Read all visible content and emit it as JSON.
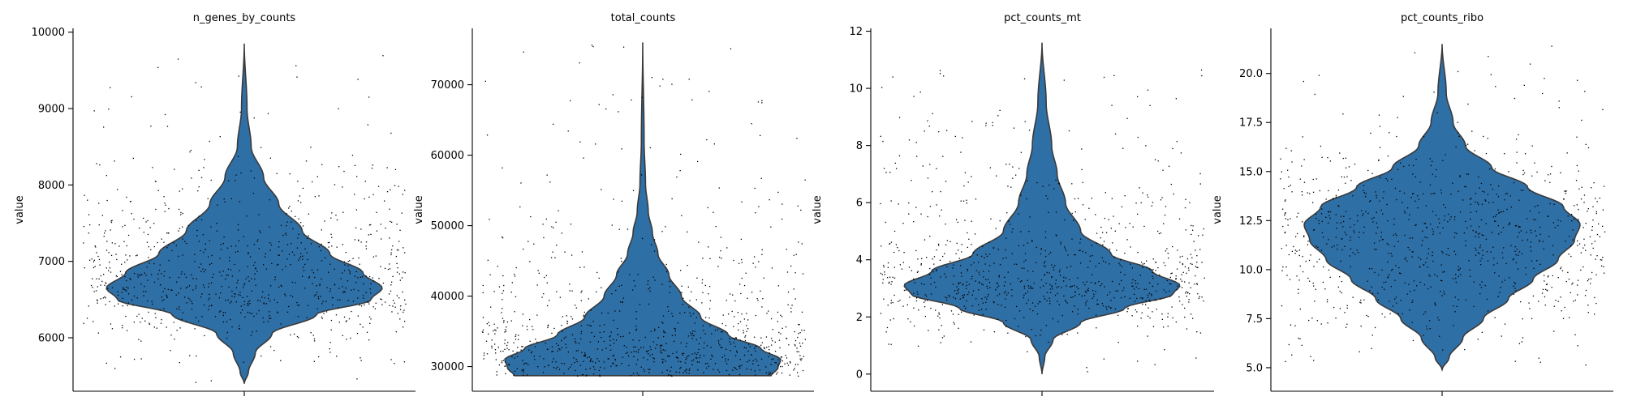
{
  "chart_data": [
    {
      "type": "violin",
      "title": "n_genes_by_counts",
      "xlabel": "",
      "ylabel": "value",
      "ylim": [
        5300,
        10050
      ],
      "yticks": [
        6000,
        7000,
        8000,
        9000,
        10000
      ],
      "ytick_labels": [
        "6000",
        "7000",
        "8000",
        "9000",
        "10000"
      ],
      "violin_color": "#2e6fa6",
      "data_min": 5400,
      "data_max": 9850,
      "point_count": 900,
      "density_profile": [
        {
          "y": 5400,
          "w": 0.0
        },
        {
          "y": 5550,
          "w": 0.03
        },
        {
          "y": 5800,
          "w": 0.08
        },
        {
          "y": 6050,
          "w": 0.2
        },
        {
          "y": 6300,
          "w": 0.52
        },
        {
          "y": 6500,
          "w": 0.92
        },
        {
          "y": 6650,
          "w": 1.0
        },
        {
          "y": 6850,
          "w": 0.86
        },
        {
          "y": 7100,
          "w": 0.62
        },
        {
          "y": 7400,
          "w": 0.42
        },
        {
          "y": 7750,
          "w": 0.25
        },
        {
          "y": 8100,
          "w": 0.14
        },
        {
          "y": 8500,
          "w": 0.05
        },
        {
          "y": 9000,
          "w": 0.02
        },
        {
          "y": 9850,
          "w": 0.0
        }
      ]
    },
    {
      "type": "violin",
      "title": "total_counts",
      "xlabel": "",
      "ylabel": "value",
      "ylim": [
        26500,
        78000
      ],
      "yticks": [
        30000,
        40000,
        50000,
        60000,
        70000
      ],
      "ytick_labels": [
        "30000",
        "40000",
        "50000",
        "60000",
        "70000"
      ],
      "violin_color": "#2e6fa6",
      "data_min": 28700,
      "data_max": 76000,
      "point_count": 900,
      "density_profile": [
        {
          "y": 28700,
          "w": 0.93
        },
        {
          "y": 29800,
          "w": 0.98
        },
        {
          "y": 31000,
          "w": 1.0
        },
        {
          "y": 32500,
          "w": 0.86
        },
        {
          "y": 34500,
          "w": 0.62
        },
        {
          "y": 37000,
          "w": 0.42
        },
        {
          "y": 40000,
          "w": 0.28
        },
        {
          "y": 43000,
          "w": 0.19
        },
        {
          "y": 46000,
          "w": 0.11
        },
        {
          "y": 49000,
          "w": 0.07
        },
        {
          "y": 52000,
          "w": 0.04
        },
        {
          "y": 56000,
          "w": 0.02
        },
        {
          "y": 62000,
          "w": 0.01
        },
        {
          "y": 76000,
          "w": 0.0
        }
      ]
    },
    {
      "type": "violin",
      "title": "pct_counts_mt",
      "xlabel": "",
      "ylabel": "value",
      "ylim": [
        -0.6,
        12.1
      ],
      "yticks": [
        0,
        2,
        4,
        6,
        8,
        10,
        12
      ],
      "ytick_labels": [
        "0",
        "2",
        "4",
        "6",
        "8",
        "10",
        "12"
      ],
      "violin_color": "#2e6fa6",
      "data_min": 0,
      "data_max": 11.6,
      "point_count": 900,
      "density_profile": [
        {
          "y": 0.0,
          "w": 0.0
        },
        {
          "y": 0.6,
          "w": 0.02
        },
        {
          "y": 1.2,
          "w": 0.08
        },
        {
          "y": 1.8,
          "w": 0.28
        },
        {
          "y": 2.3,
          "w": 0.6
        },
        {
          "y": 2.8,
          "w": 0.95
        },
        {
          "y": 3.1,
          "w": 1.0
        },
        {
          "y": 3.6,
          "w": 0.8
        },
        {
          "y": 4.2,
          "w": 0.5
        },
        {
          "y": 5.0,
          "w": 0.28
        },
        {
          "y": 6.0,
          "w": 0.17
        },
        {
          "y": 7.0,
          "w": 0.11
        },
        {
          "y": 8.0,
          "w": 0.07
        },
        {
          "y": 9.5,
          "w": 0.03
        },
        {
          "y": 11.6,
          "w": 0.0
        }
      ]
    },
    {
      "type": "violin",
      "title": "pct_counts_ribo",
      "xlabel": "",
      "ylabel": "value",
      "ylim": [
        3.8,
        22.3
      ],
      "yticks": [
        5.0,
        7.5,
        10.0,
        12.5,
        15.0,
        17.5,
        20.0
      ],
      "ytick_labels": [
        "5.0",
        "7.5",
        "10.0",
        "12.5",
        "15.0",
        "17.5",
        "20.0"
      ],
      "violin_color": "#2e6fa6",
      "data_min": 4.9,
      "data_max": 21.5,
      "point_count": 900,
      "density_profile": [
        {
          "y": 4.9,
          "w": 0.0
        },
        {
          "y": 5.5,
          "w": 0.05
        },
        {
          "y": 6.5,
          "w": 0.15
        },
        {
          "y": 7.5,
          "w": 0.3
        },
        {
          "y": 8.5,
          "w": 0.48
        },
        {
          "y": 9.5,
          "w": 0.66
        },
        {
          "y": 10.5,
          "w": 0.84
        },
        {
          "y": 11.5,
          "w": 0.96
        },
        {
          "y": 12.3,
          "w": 1.0
        },
        {
          "y": 13.2,
          "w": 0.88
        },
        {
          "y": 14.2,
          "w": 0.62
        },
        {
          "y": 15.2,
          "w": 0.36
        },
        {
          "y": 16.3,
          "w": 0.17
        },
        {
          "y": 17.5,
          "w": 0.08
        },
        {
          "y": 19.0,
          "w": 0.03
        },
        {
          "y": 21.5,
          "w": 0.0
        }
      ]
    }
  ]
}
